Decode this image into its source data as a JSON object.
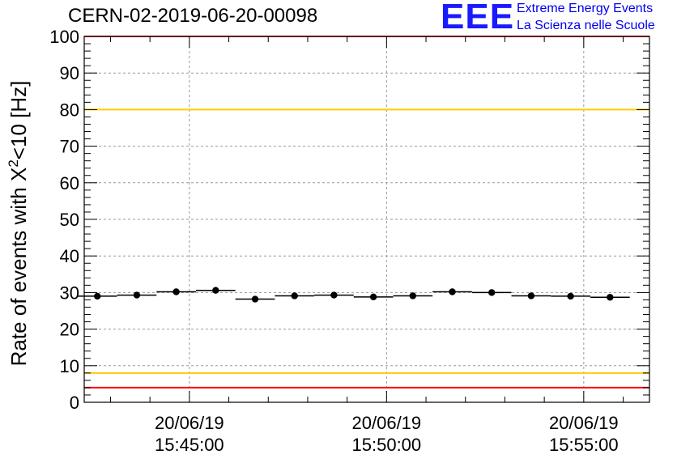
{
  "header": {
    "run_id": "CERN-02-2019-06-20-00098"
  },
  "logo": {
    "mark": "EEE",
    "line1": "Extreme Energy Events",
    "line2": "La Scienza nelle Scuole",
    "color": "#0000ee"
  },
  "chart_data": {
    "type": "scatter",
    "ylabel_prefix": "Rate of events with X",
    "ylabel_sup": "2",
    "ylabel_suffix": "<10 [Hz]",
    "ylim": [
      0,
      100
    ],
    "yticks": [
      0,
      10,
      20,
      30,
      40,
      50,
      60,
      70,
      80,
      90,
      100
    ],
    "x_time_range": [
      "15:42:20",
      "15:56:40"
    ],
    "x_major_ticks": [
      {
        "time": "15:45:00",
        "date": "20/06/19",
        "clock": "15:45:00"
      },
      {
        "time": "15:50:00",
        "date": "20/06/19",
        "clock": "15:50:00"
      },
      {
        "time": "15:55:00",
        "date": "20/06/19",
        "clock": "15:55:00"
      }
    ],
    "grid": true,
    "bin_width_s": 60,
    "series": [
      {
        "marker": "circle",
        "color": "#000000",
        "points": [
          {
            "x": "15:42:40",
            "y": 29.0
          },
          {
            "x": "15:43:40",
            "y": 29.3
          },
          {
            "x": "15:44:40",
            "y": 30.2
          },
          {
            "x": "15:45:40",
            "y": 30.6
          },
          {
            "x": "15:46:40",
            "y": 28.2
          },
          {
            "x": "15:47:40",
            "y": 29.1
          },
          {
            "x": "15:48:40",
            "y": 29.3
          },
          {
            "x": "15:49:40",
            "y": 28.8
          },
          {
            "x": "15:50:40",
            "y": 29.1
          },
          {
            "x": "15:51:40",
            "y": 30.2
          },
          {
            "x": "15:52:40",
            "y": 30.0
          },
          {
            "x": "15:53:40",
            "y": 29.1
          },
          {
            "x": "15:54:40",
            "y": 29.0
          },
          {
            "x": "15:55:40",
            "y": 28.7
          }
        ]
      }
    ],
    "reference_lines": [
      {
        "y": 100,
        "color": "#ff0000"
      },
      {
        "y": 80,
        "color": "#ffcc00"
      },
      {
        "y": 8,
        "color": "#ffcc00"
      },
      {
        "y": 4,
        "color": "#ff0000"
      }
    ]
  }
}
